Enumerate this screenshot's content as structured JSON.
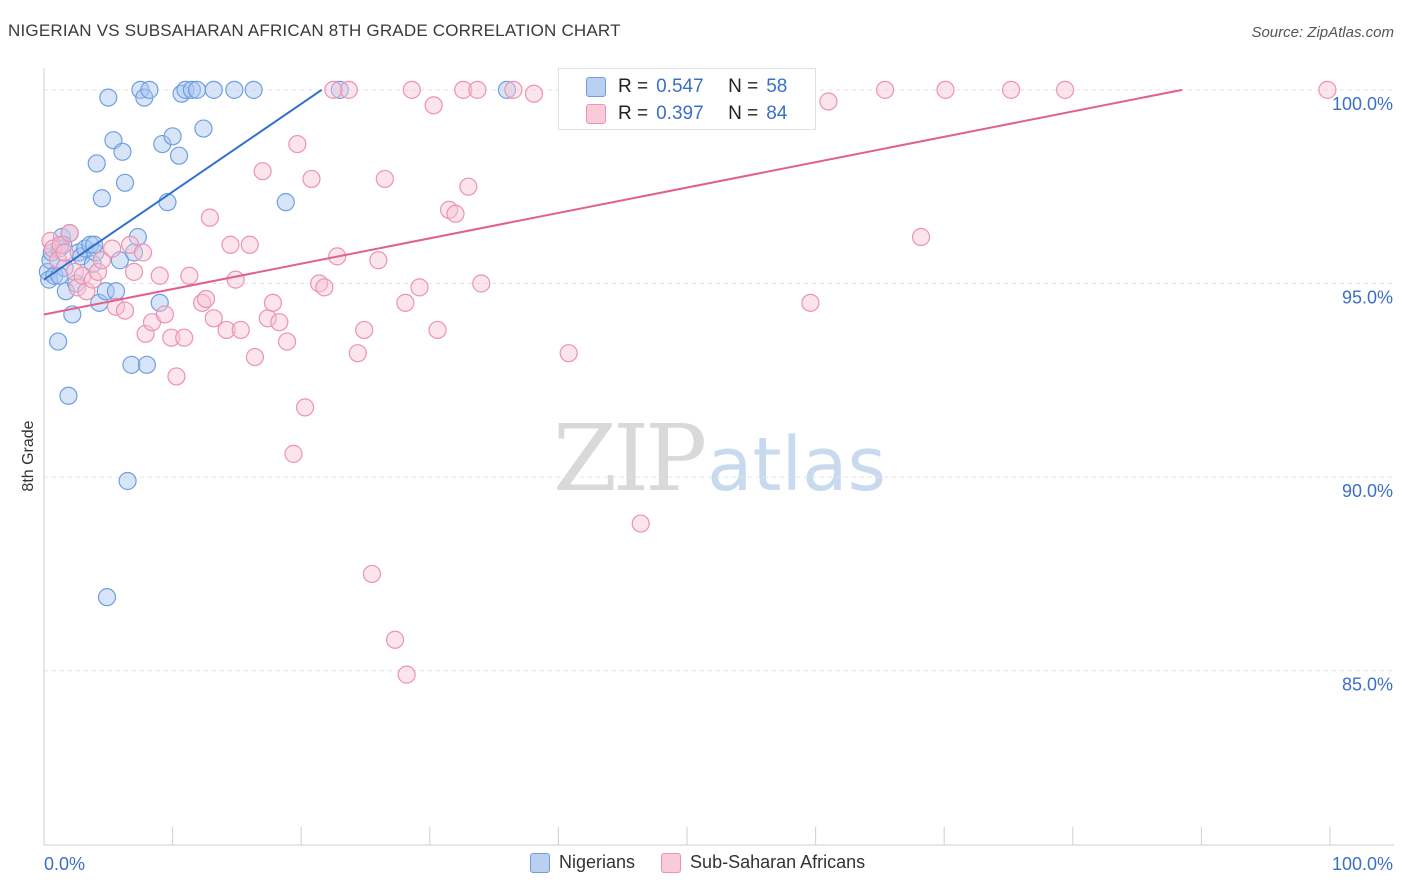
{
  "title": "NIGERIAN VS SUBSAHARAN AFRICAN 8TH GRADE CORRELATION CHART",
  "source": "Source: ZipAtlas.com",
  "watermark": {
    "part1": "ZIP",
    "part2": "atlas"
  },
  "stats": [
    {
      "r_label": "R =",
      "r_value": "0.547",
      "n_label": "N =",
      "n_value": "58"
    },
    {
      "r_label": "R =",
      "r_value": "0.397",
      "n_label": "N =",
      "n_value": "84"
    }
  ],
  "legend": [
    {
      "label": "Nigerians"
    },
    {
      "label": "Sub-Saharan Africans"
    }
  ],
  "chart_data": {
    "type": "scatter",
    "title": "NIGERIAN VS SUBSAHARAN AFRICAN 8TH GRADE CORRELATION CHART",
    "xlabel": "",
    "ylabel": "8th Grade",
    "xlim": [
      0,
      100
    ],
    "ylim": [
      80.5,
      100.9
    ],
    "y_ticks": [
      85,
      90,
      95,
      100
    ],
    "y_tick_labels": [
      "85.0%",
      "90.0%",
      "95.0%",
      "100.0%"
    ],
    "x_tick_labels": [
      "0.0%",
      "100.0%"
    ],
    "series": [
      {
        "name": "Nigerians",
        "color": "#6f9fe0",
        "fill": "#a9c6ef",
        "line_color": "#2f6fd0",
        "trend": {
          "x0": 0,
          "y0": 95.1,
          "x1": 21.6,
          "y1": 100.0
        },
        "points": [
          [
            0.3,
            95.3
          ],
          [
            0.4,
            95.1
          ],
          [
            0.5,
            95.6
          ],
          [
            0.6,
            95.8
          ],
          [
            0.8,
            95.2
          ],
          [
            1.1,
            93.5
          ],
          [
            1.2,
            95.9
          ],
          [
            1.4,
            96.2
          ],
          [
            1.7,
            94.8
          ],
          [
            1.9,
            92.1
          ],
          [
            2.0,
            96.3
          ],
          [
            2.2,
            94.2
          ],
          [
            2.5,
            95.0
          ],
          [
            2.7,
            95.8
          ],
          [
            2.9,
            95.7
          ],
          [
            3.2,
            95.9
          ],
          [
            3.6,
            96.0
          ],
          [
            3.8,
            95.5
          ],
          [
            4.0,
            95.8
          ],
          [
            4.1,
            98.1
          ],
          [
            4.3,
            94.5
          ],
          [
            4.5,
            97.2
          ],
          [
            4.8,
            94.8
          ],
          [
            5.0,
            99.8
          ],
          [
            5.4,
            98.7
          ],
          [
            5.6,
            94.8
          ],
          [
            5.9,
            95.6
          ],
          [
            6.1,
            98.4
          ],
          [
            6.3,
            97.6
          ],
          [
            6.5,
            89.9
          ],
          [
            6.8,
            92.9
          ],
          [
            7.0,
            95.8
          ],
          [
            7.3,
            96.2
          ],
          [
            7.5,
            100.0
          ],
          [
            7.8,
            99.8
          ],
          [
            8.2,
            100.0
          ],
          [
            9.0,
            94.5
          ],
          [
            9.2,
            98.6
          ],
          [
            9.6,
            97.1
          ],
          [
            10.0,
            98.8
          ],
          [
            10.5,
            98.3
          ],
          [
            10.7,
            99.9
          ],
          [
            11.0,
            100.0
          ],
          [
            11.5,
            100.0
          ],
          [
            11.9,
            100.0
          ],
          [
            12.4,
            99.0
          ],
          [
            13.2,
            100.0
          ],
          [
            14.8,
            100.0
          ],
          [
            16.3,
            100.0
          ],
          [
            18.8,
            97.1
          ],
          [
            23.0,
            100.0
          ],
          [
            36.0,
            100.0
          ],
          [
            3.9,
            96.0
          ],
          [
            1.6,
            95.4
          ],
          [
            8.0,
            92.9
          ],
          [
            4.9,
            86.9
          ],
          [
            1.2,
            95.2
          ],
          [
            1.5,
            96.0
          ]
        ]
      },
      {
        "name": "Sub-Saharan Africans",
        "color": "#ec92b2",
        "fill": "#f7c3d4",
        "line_color": "#e0608f",
        "trend": {
          "x0": 0,
          "y0": 94.2,
          "x1": 88.5,
          "y1": 100.0
        },
        "points": [
          [
            0.5,
            96.1
          ],
          [
            0.7,
            95.9
          ],
          [
            1.1,
            95.6
          ],
          [
            1.3,
            96.0
          ],
          [
            1.6,
            95.8
          ],
          [
            2.0,
            96.3
          ],
          [
            2.4,
            95.3
          ],
          [
            2.6,
            94.9
          ],
          [
            3.0,
            95.2
          ],
          [
            3.3,
            94.8
          ],
          [
            3.8,
            95.1
          ],
          [
            4.2,
            95.3
          ],
          [
            4.5,
            95.6
          ],
          [
            5.3,
            95.9
          ],
          [
            5.6,
            94.4
          ],
          [
            6.3,
            94.3
          ],
          [
            6.7,
            96.0
          ],
          [
            7.0,
            95.3
          ],
          [
            7.7,
            95.8
          ],
          [
            7.9,
            93.7
          ],
          [
            8.4,
            94.0
          ],
          [
            9.0,
            95.2
          ],
          [
            9.4,
            94.2
          ],
          [
            9.9,
            93.6
          ],
          [
            10.3,
            92.6
          ],
          [
            10.9,
            93.6
          ],
          [
            11.3,
            95.2
          ],
          [
            12.3,
            94.5
          ],
          [
            12.6,
            94.6
          ],
          [
            12.9,
            96.7
          ],
          [
            13.2,
            94.1
          ],
          [
            14.2,
            93.8
          ],
          [
            14.5,
            96.0
          ],
          [
            14.9,
            95.1
          ],
          [
            15.3,
            93.8
          ],
          [
            16.0,
            96.0
          ],
          [
            16.4,
            93.1
          ],
          [
            17.0,
            97.9
          ],
          [
            17.4,
            94.1
          ],
          [
            17.8,
            94.5
          ],
          [
            18.3,
            94.0
          ],
          [
            18.9,
            93.5
          ],
          [
            19.4,
            90.6
          ],
          [
            19.7,
            98.6
          ],
          [
            20.3,
            91.8
          ],
          [
            20.8,
            97.7
          ],
          [
            21.4,
            95.0
          ],
          [
            21.8,
            94.9
          ],
          [
            22.8,
            95.7
          ],
          [
            23.7,
            100.0
          ],
          [
            24.4,
            93.2
          ],
          [
            24.9,
            93.8
          ],
          [
            25.5,
            87.5
          ],
          [
            26.0,
            95.6
          ],
          [
            26.5,
            97.7
          ],
          [
            27.3,
            85.8
          ],
          [
            28.1,
            94.5
          ],
          [
            28.2,
            84.9
          ],
          [
            28.6,
            100.0
          ],
          [
            29.2,
            94.9
          ],
          [
            30.3,
            99.6
          ],
          [
            30.6,
            93.8
          ],
          [
            31.5,
            96.9
          ],
          [
            32.0,
            96.8
          ],
          [
            32.6,
            100.0
          ],
          [
            33.0,
            97.5
          ],
          [
            33.7,
            100.0
          ],
          [
            34.0,
            95.0
          ],
          [
            36.5,
            100.0
          ],
          [
            38.1,
            99.9
          ],
          [
            40.8,
            93.2
          ],
          [
            46.4,
            88.8
          ],
          [
            47.6,
            100.0
          ],
          [
            50.2,
            99.4
          ],
          [
            54.5,
            99.9
          ],
          [
            59.6,
            94.5
          ],
          [
            61.0,
            99.7
          ],
          [
            65.4,
            100.0
          ],
          [
            68.2,
            96.2
          ],
          [
            70.1,
            100.0
          ],
          [
            75.2,
            100.0
          ],
          [
            79.4,
            100.0
          ],
          [
            99.8,
            100.0
          ],
          [
            22.5,
            100.0
          ]
        ]
      }
    ]
  }
}
